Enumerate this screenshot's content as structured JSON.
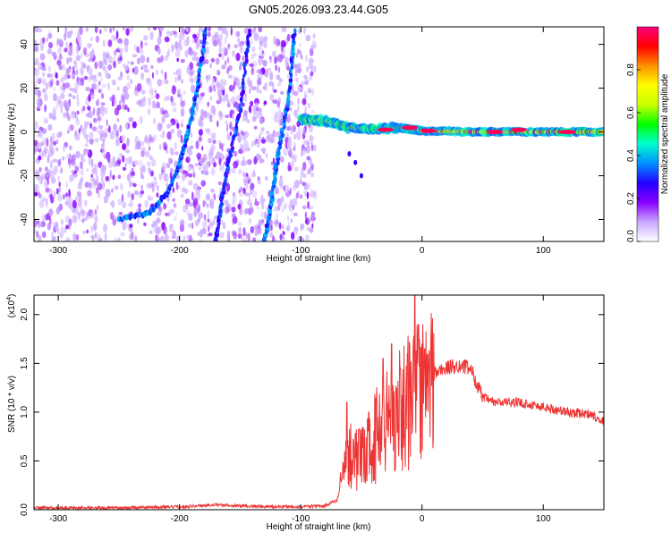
{
  "title": "GN05.2026.093.23.44.G05",
  "chart_data": [
    {
      "type": "heatmap",
      "xlabel": "Height of straight line (km)",
      "ylabel": "Frequency (Hz)",
      "xlim": [
        -320,
        150
      ],
      "ylim": [
        -50,
        48
      ],
      "xticks": [
        -300,
        -200,
        -100,
        0,
        100
      ],
      "yticks": [
        -40,
        -20,
        0,
        20,
        40
      ],
      "colorbar": {
        "label": "Normalized spectral amplitude",
        "range": [
          0,
          1
        ],
        "ticks": [
          "0.0",
          "0.2",
          "0.4",
          "0.6",
          "0.8"
        ],
        "colors": [
          "#ffffff",
          "#c9a8ff",
          "#8a00ff",
          "#2200ff",
          "#0090ff",
          "#00ffd0",
          "#00ff00",
          "#c8ff00",
          "#ffff00",
          "#ff9000",
          "#ff0000",
          "#ff0080"
        ]
      },
      "features": [
        {
          "name": "noise band",
          "x_range": [
            -320,
            -88
          ],
          "freq_range": [
            -50,
            48
          ],
          "amplitude": 0.15
        },
        {
          "name": "curved trace 1",
          "points": [
            [
              -250,
              -40
            ],
            [
              -225,
              -37
            ],
            [
              -210,
              -28
            ],
            [
              -200,
              -15
            ],
            [
              -193,
              0
            ],
            [
              -185,
              20
            ],
            [
              -178,
              48
            ]
          ],
          "amplitude": 0.3
        },
        {
          "name": "diagonal trace 2",
          "points": [
            [
              -170,
              -50
            ],
            [
              -165,
              -30
            ],
            [
              -160,
              -15
            ],
            [
              -150,
              10
            ],
            [
              -142,
              48
            ]
          ],
          "amplitude": 0.25
        },
        {
          "name": "diagonal trace 3",
          "points": [
            [
              -130,
              -50
            ],
            [
              -125,
              -35
            ],
            [
              -120,
              -15
            ],
            [
              -110,
              15
            ],
            [
              -105,
              48
            ]
          ],
          "amplitude": 0.3
        },
        {
          "name": "ridge near 0 Hz",
          "points": [
            [
              -100,
              6
            ],
            [
              -80,
              5
            ],
            [
              -60,
              2
            ],
            [
              -40,
              1
            ],
            [
              -20,
              2
            ],
            [
              0,
              0.5
            ],
            [
              50,
              0
            ],
            [
              100,
              0
            ],
            [
              150,
              0
            ]
          ],
          "amplitude": 0.95
        }
      ]
    },
    {
      "type": "line",
      "xlabel": "Height of straight line (km)",
      "ylabel": "SNR (10 * v/v)",
      "yscale_label": "(x10",
      "yscale_exp": "4",
      "xlim": [
        -320,
        150
      ],
      "ylim": [
        0,
        2.2
      ],
      "xticks": [
        -300,
        -200,
        -100,
        0,
        100
      ],
      "yticks": [
        "0.0",
        "0.5",
        "1.0",
        "1.5",
        "2.0"
      ],
      "series": [
        {
          "color": "#ee3333",
          "x": [
            -320,
            -300,
            -250,
            -200,
            -170,
            -150,
            -120,
            -100,
            -80,
            -70,
            -65,
            -60,
            -55,
            -50,
            -45,
            -40,
            -35,
            -30,
            -25,
            -20,
            -15,
            -10,
            -5,
            0,
            5,
            10,
            20,
            30,
            40,
            45,
            50,
            60,
            80,
            100,
            120,
            140,
            150
          ],
          "y": [
            0.02,
            0.02,
            0.02,
            0.03,
            0.05,
            0.04,
            0.03,
            0.03,
            0.04,
            0.1,
            0.35,
            0.6,
            0.55,
            0.5,
            0.6,
            0.7,
            0.85,
            0.9,
            0.95,
            1.0,
            1.05,
            1.15,
            1.2,
            1.22,
            1.3,
            1.4,
            1.45,
            1.48,
            1.45,
            1.3,
            1.15,
            1.1,
            1.1,
            1.05,
            1.0,
            0.98,
            0.9
          ],
          "spikes": [
            [
              -62,
              1.1
            ],
            [
              -44,
              1.0
            ],
            [
              -32,
              1.55
            ],
            [
              -25,
              1.7
            ],
            [
              -18,
              1.45
            ],
            [
              -12,
              1.6
            ],
            [
              -6,
              2.2
            ],
            [
              -3,
              1.9
            ],
            [
              2,
              1.65
            ]
          ]
        }
      ]
    }
  ]
}
